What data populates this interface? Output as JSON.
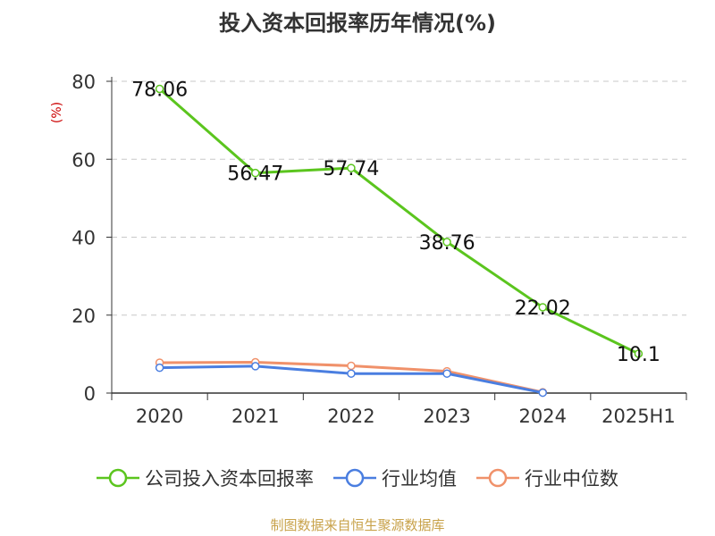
{
  "chart_data": {
    "type": "line",
    "title": "投入资本回报率历年情况(%)",
    "ylabel": "(%)",
    "xlabel": "",
    "categories": [
      "2020",
      "2021",
      "2022",
      "2023",
      "2024",
      "2025H1"
    ],
    "ylim": [
      0,
      80
    ],
    "yticks": [
      0,
      20,
      40,
      60,
      80
    ],
    "grid": true,
    "legend_position": "bottom",
    "series": [
      {
        "name": "公司投入资本回报率",
        "color": "#5bc51e",
        "values": [
          78.06,
          56.47,
          57.74,
          38.76,
          22.02,
          10.1
        ],
        "labels": [
          "78.06",
          "56.47",
          "57.74",
          "38.76",
          "22.02",
          "10.1"
        ]
      },
      {
        "name": "行业均值",
        "color": "#4a7ee0",
        "values": [
          6.5,
          6.9,
          5.0,
          5.0,
          0.1,
          null
        ]
      },
      {
        "name": "行业中位数",
        "color": "#f0916a",
        "values": [
          7.8,
          7.9,
          7.0,
          5.6,
          0.2,
          null
        ]
      }
    ]
  },
  "source": "制图数据来自恒生聚源数据库"
}
